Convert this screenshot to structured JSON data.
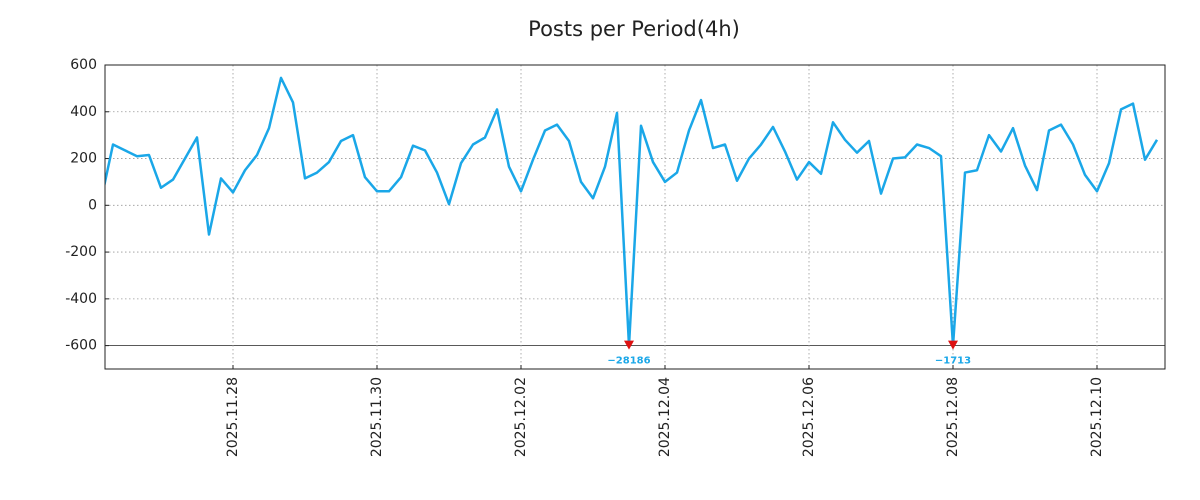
{
  "chart_data": {
    "type": "line",
    "title": "Posts per Period(4h)",
    "categories": [
      null,
      null,
      null,
      null,
      null,
      null,
      null,
      null,
      null,
      null,
      null,
      "2025.11.28",
      null,
      null,
      null,
      null,
      null,
      null,
      null,
      null,
      null,
      null,
      null,
      "2025.11.30",
      null,
      null,
      null,
      null,
      null,
      null,
      null,
      null,
      null,
      null,
      null,
      "2025.12.02",
      null,
      null,
      null,
      null,
      null,
      null,
      null,
      null,
      null,
      null,
      null,
      "2025.12.04",
      null,
      null,
      null,
      null,
      null,
      null,
      null,
      null,
      null,
      null,
      null,
      "2025.12.06",
      null,
      null,
      null,
      null,
      null,
      null,
      null,
      null,
      null,
      null,
      null,
      "2025.12.08",
      null,
      null,
      null,
      null,
      null,
      null,
      null,
      null,
      null,
      null,
      null,
      "2025.12.10",
      null,
      null,
      null,
      null,
      null
    ],
    "series": [
      {
        "name": "Posts",
        "color": "#1aa7e8",
        "values": [
          20,
          260,
          235,
          210,
          215,
          75,
          110,
          200,
          290,
          -125,
          115,
          55,
          150,
          215,
          330,
          545,
          440,
          115,
          140,
          185,
          275,
          300,
          120,
          60,
          60,
          120,
          255,
          235,
          140,
          5,
          180,
          260,
          290,
          410,
          165,
          60,
          195,
          320,
          345,
          275,
          100,
          30,
          165,
          395,
          -28186,
          340,
          185,
          100,
          140,
          320,
          450,
          245,
          260,
          105,
          200,
          260,
          335,
          230,
          110,
          185,
          135,
          355,
          280,
          225,
          275,
          50,
          200,
          205,
          260,
          245,
          210,
          -1713,
          140,
          150,
          300,
          230,
          330,
          170,
          65,
          320,
          345,
          260,
          130,
          60,
          180,
          410,
          435,
          195,
          280
        ],
        "value_labels": [
          null,
          null,
          null,
          null,
          null,
          null,
          null,
          null,
          null,
          null,
          null,
          null,
          null,
          null,
          null,
          null,
          null,
          null,
          null,
          null,
          null,
          null,
          null,
          null,
          null,
          null,
          null,
          null,
          null,
          null,
          null,
          null,
          null,
          null,
          null,
          null,
          null,
          null,
          null,
          null,
          null,
          null,
          null,
          null,
          "−28186",
          null,
          null,
          null,
          null,
          null,
          null,
          null,
          null,
          null,
          null,
          null,
          null,
          null,
          null,
          null,
          null,
          null,
          null,
          null,
          null,
          null,
          null,
          null,
          null,
          null,
          null,
          "−1713",
          null,
          null,
          null,
          null,
          null,
          null,
          null,
          null,
          null,
          null,
          null,
          null,
          null,
          null,
          null,
          null,
          null
        ]
      }
    ],
    "ylim": [
      -700,
      600
    ],
    "yticks": [
      -600,
      -400,
      -200,
      0,
      200,
      400,
      600
    ],
    "floor": -600,
    "grid": true,
    "marker_color": "#dd1111"
  }
}
